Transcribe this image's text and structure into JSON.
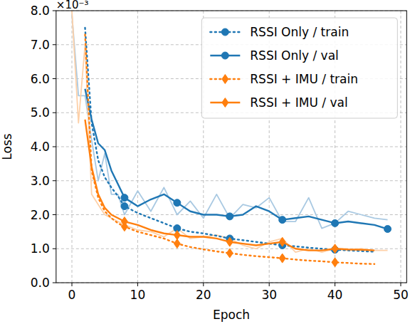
{
  "chart_data": {
    "type": "line",
    "x_label": "Epoch",
    "y_label": "Loss",
    "y_multiplier": "×10⁻³",
    "x": [
      0,
      1,
      2,
      3,
      4,
      5,
      6,
      7,
      8,
      10,
      12,
      14,
      16,
      18,
      20,
      22,
      24,
      26,
      28,
      30,
      32,
      34,
      36,
      38,
      40,
      42,
      44,
      46,
      48
    ],
    "xlim": [
      -2.4,
      50.9
    ],
    "xticks": [
      0,
      10,
      20,
      30,
      40,
      50
    ],
    "ylim": [
      0,
      8
    ],
    "yticks": [
      {
        "value": 0,
        "label": "0.0"
      },
      {
        "value": 1,
        "label": "1.0"
      },
      {
        "value": 2,
        "label": "2.0"
      },
      {
        "value": 3,
        "label": "3.0"
      },
      {
        "value": 4,
        "label": "4.0"
      },
      {
        "value": 5,
        "label": "5.0"
      },
      {
        "value": 6,
        "label": "6.0"
      },
      {
        "value": 7,
        "label": "7.0"
      },
      {
        "value": 8,
        "label": "8.0"
      }
    ],
    "grid": true,
    "legend": "upper-right",
    "series": [
      {
        "color": "#a9c9e2",
        "line_style": "faint",
        "marker": "none",
        "values": [
          7.9,
          5.5,
          5.5,
          4.2,
          3.0,
          3.8,
          2.6,
          2.6,
          2.0,
          2.7,
          2.1,
          2.8,
          2.0,
          2.4,
          1.9,
          2.6,
          1.9,
          2.3,
          2.2,
          2.5,
          1.8,
          1.8,
          2.5,
          1.6,
          1.75,
          2.1,
          2.0,
          1.9,
          1.85
        ]
      },
      {
        "color": "#fdd0a8",
        "line_style": "faint",
        "marker": "none",
        "values": [
          8.0,
          4.7,
          7.0,
          2.6,
          2.3,
          2.0,
          1.9,
          1.8,
          1.7,
          1.55,
          1.5,
          1.35,
          1.6,
          1.3,
          1.35,
          1.4,
          1.3,
          1.1,
          1.0,
          1.2,
          1.3,
          0.9,
          1.0,
          0.9,
          1.0,
          0.95,
          1.0,
          0.95,
          0.95
        ]
      },
      {
        "name": "RSSI Only / train",
        "color": "#1f77b4",
        "line_style": "dotted",
        "marker": "circle",
        "values": [
          null,
          null,
          7.5,
          4.7,
          3.6,
          3.1,
          2.8,
          2.55,
          2.25,
          2.05,
          1.9,
          1.75,
          1.6,
          1.5,
          1.45,
          1.38,
          1.3,
          1.25,
          1.2,
          1.15,
          1.1,
          1.07,
          1.03,
          1.0,
          0.97,
          0.95,
          0.93,
          0.91,
          null
        ]
      },
      {
        "name": "RSSI Only / val",
        "color": "#1f77b4",
        "line_style": "solid",
        "marker": "circle",
        "values": [
          null,
          null,
          5.7,
          4.8,
          4.1,
          3.9,
          3.3,
          2.9,
          2.5,
          2.25,
          2.45,
          2.6,
          2.35,
          2.1,
          2.0,
          2.0,
          1.95,
          2.0,
          2.25,
          2.1,
          1.85,
          1.9,
          1.95,
          1.85,
          1.75,
          1.8,
          1.75,
          1.7,
          1.58
        ]
      },
      {
        "name": "RSSI + IMU / train",
        "color": "#ff7f0e",
        "line_style": "dotted",
        "marker": "diamond",
        "values": [
          null,
          null,
          7.3,
          3.3,
          2.5,
          2.1,
          1.9,
          1.75,
          1.65,
          1.5,
          1.4,
          1.3,
          1.15,
          1.05,
          0.98,
          0.92,
          0.87,
          0.82,
          0.78,
          0.75,
          0.72,
          0.68,
          0.65,
          0.63,
          0.6,
          0.58,
          0.56,
          0.55,
          null
        ]
      },
      {
        "name": "RSSI + IMU / val",
        "color": "#ff7f0e",
        "line_style": "solid",
        "marker": "diamond",
        "values": [
          null,
          null,
          4.8,
          3.4,
          2.6,
          2.2,
          2.0,
          1.9,
          1.8,
          1.7,
          1.55,
          1.45,
          1.4,
          1.35,
          1.35,
          1.3,
          1.2,
          1.15,
          1.1,
          1.15,
          1.2,
          1.0,
          0.95,
          0.95,
          1.0,
          0.98,
          0.97,
          0.95,
          null
        ]
      }
    ]
  }
}
